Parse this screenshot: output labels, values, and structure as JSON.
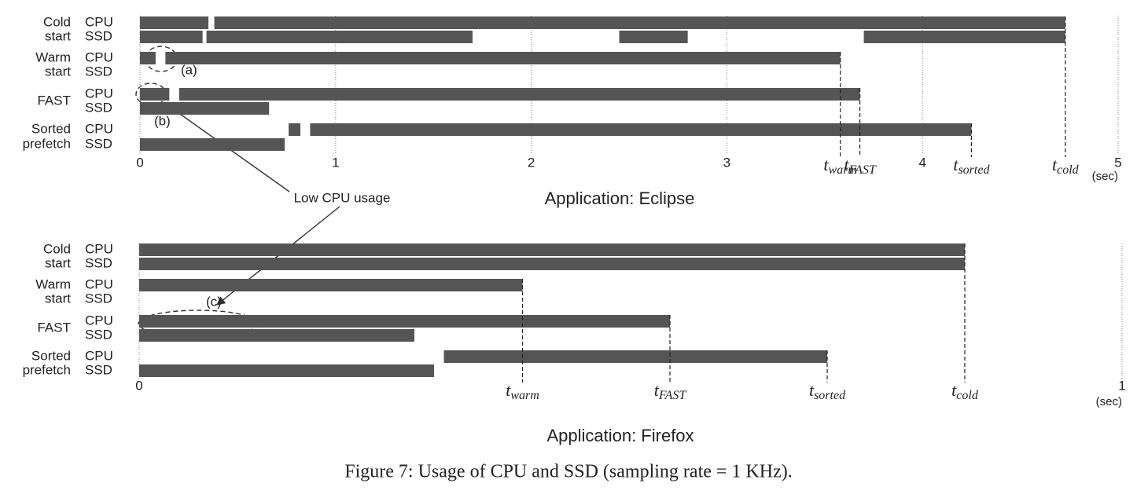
{
  "chart_data": [
    {
      "type": "timeline",
      "title": "Application: Eclipse",
      "xlim": [
        0,
        5
      ],
      "xticks": [
        0,
        1,
        2,
        3,
        4,
        5
      ],
      "x_unit": "(sec)",
      "grid": true,
      "color": "#555555",
      "groups": [
        {
          "label": [
            "Cold",
            "start"
          ],
          "rows": [
            {
              "name": "CPU",
              "segments": [
                [
                  0,
                  0.35
                ],
                [
                  0.38,
                  4.73
                ]
              ]
            },
            {
              "name": "SSD",
              "segments": [
                [
                  0,
                  0.32
                ],
                [
                  0.34,
                  1.7
                ],
                [
                  2.45,
                  2.8
                ],
                [
                  3.7,
                  4.73
                ]
              ]
            }
          ]
        },
        {
          "label": [
            "Warm",
            "start"
          ],
          "rows": [
            {
              "name": "CPU",
              "segments": [
                [
                  0,
                  0.08
                ],
                [
                  0.13,
                  3.58
                ]
              ]
            },
            {
              "name": "SSD",
              "segments": []
            }
          ]
        },
        {
          "label": [
            "FAST"
          ],
          "rows": [
            {
              "name": "CPU",
              "segments": [
                [
                  0,
                  0.15
                ],
                [
                  0.2,
                  3.68
                ]
              ]
            },
            {
              "name": "SSD",
              "segments": [
                [
                  0,
                  0.66
                ]
              ]
            }
          ]
        },
        {
          "label": [
            "Sorted",
            "prefetch"
          ],
          "rows": [
            {
              "name": "CPU",
              "segments": [
                [
                  0.76,
                  0.82
                ],
                [
                  0.87,
                  4.25
                ]
              ]
            },
            {
              "name": "SSD",
              "segments": [
                [
                  0,
                  0.74
                ]
              ]
            }
          ]
        }
      ],
      "markers": [
        {
          "value": 3.58,
          "label": "t",
          "subscript": "warm"
        },
        {
          "value": 3.68,
          "label": "t",
          "subscript": "FAST"
        },
        {
          "value": 4.25,
          "label": "t",
          "subscript": "sorted"
        },
        {
          "value": 4.73,
          "label": "t",
          "subscript": "cold"
        }
      ]
    },
    {
      "type": "timeline",
      "title": "Application: Firefox",
      "xlim": [
        0,
        1
      ],
      "xticks": [
        0,
        1
      ],
      "x_unit": "(sec)",
      "grid": true,
      "color": "#555555",
      "groups": [
        {
          "label": [
            "Cold",
            "start"
          ],
          "rows": [
            {
              "name": "CPU",
              "segments": [
                [
                  0,
                  0.84
                ]
              ]
            },
            {
              "name": "SSD",
              "segments": [
                [
                  0,
                  0.84
                ]
              ]
            }
          ]
        },
        {
          "label": [
            "Warm",
            "start"
          ],
          "rows": [
            {
              "name": "CPU",
              "segments": [
                [
                  0,
                  0.39
                ]
              ]
            },
            {
              "name": "SSD",
              "segments": []
            }
          ]
        },
        {
          "label": [
            "FAST"
          ],
          "rows": [
            {
              "name": "CPU",
              "segments": [
                [
                  0,
                  0.54
                ]
              ]
            },
            {
              "name": "SSD",
              "segments": [
                [
                  0,
                  0.28
                ]
              ]
            }
          ]
        },
        {
          "label": [
            "Sorted",
            "prefetch"
          ],
          "rows": [
            {
              "name": "CPU",
              "segments": [
                [
                  0.31,
                  0.7
                ]
              ]
            },
            {
              "name": "SSD",
              "segments": [
                [
                  0,
                  0.3
                ]
              ]
            }
          ]
        }
      ],
      "markers": [
        {
          "value": 0.39,
          "label": "t",
          "subscript": "warm"
        },
        {
          "value": 0.54,
          "label": "t",
          "subscript": "FAST"
        },
        {
          "value": 0.7,
          "label": "t",
          "subscript": "sorted"
        },
        {
          "value": 0.84,
          "label": "t",
          "subscript": "cold"
        }
      ]
    }
  ],
  "annotations": {
    "a": "(a)",
    "b": "(b)",
    "c": "(c)",
    "arrow": "Low CPU usage"
  },
  "caption": "Figure 7: Usage of CPU and SSD (sampling rate = 1 KHz)."
}
